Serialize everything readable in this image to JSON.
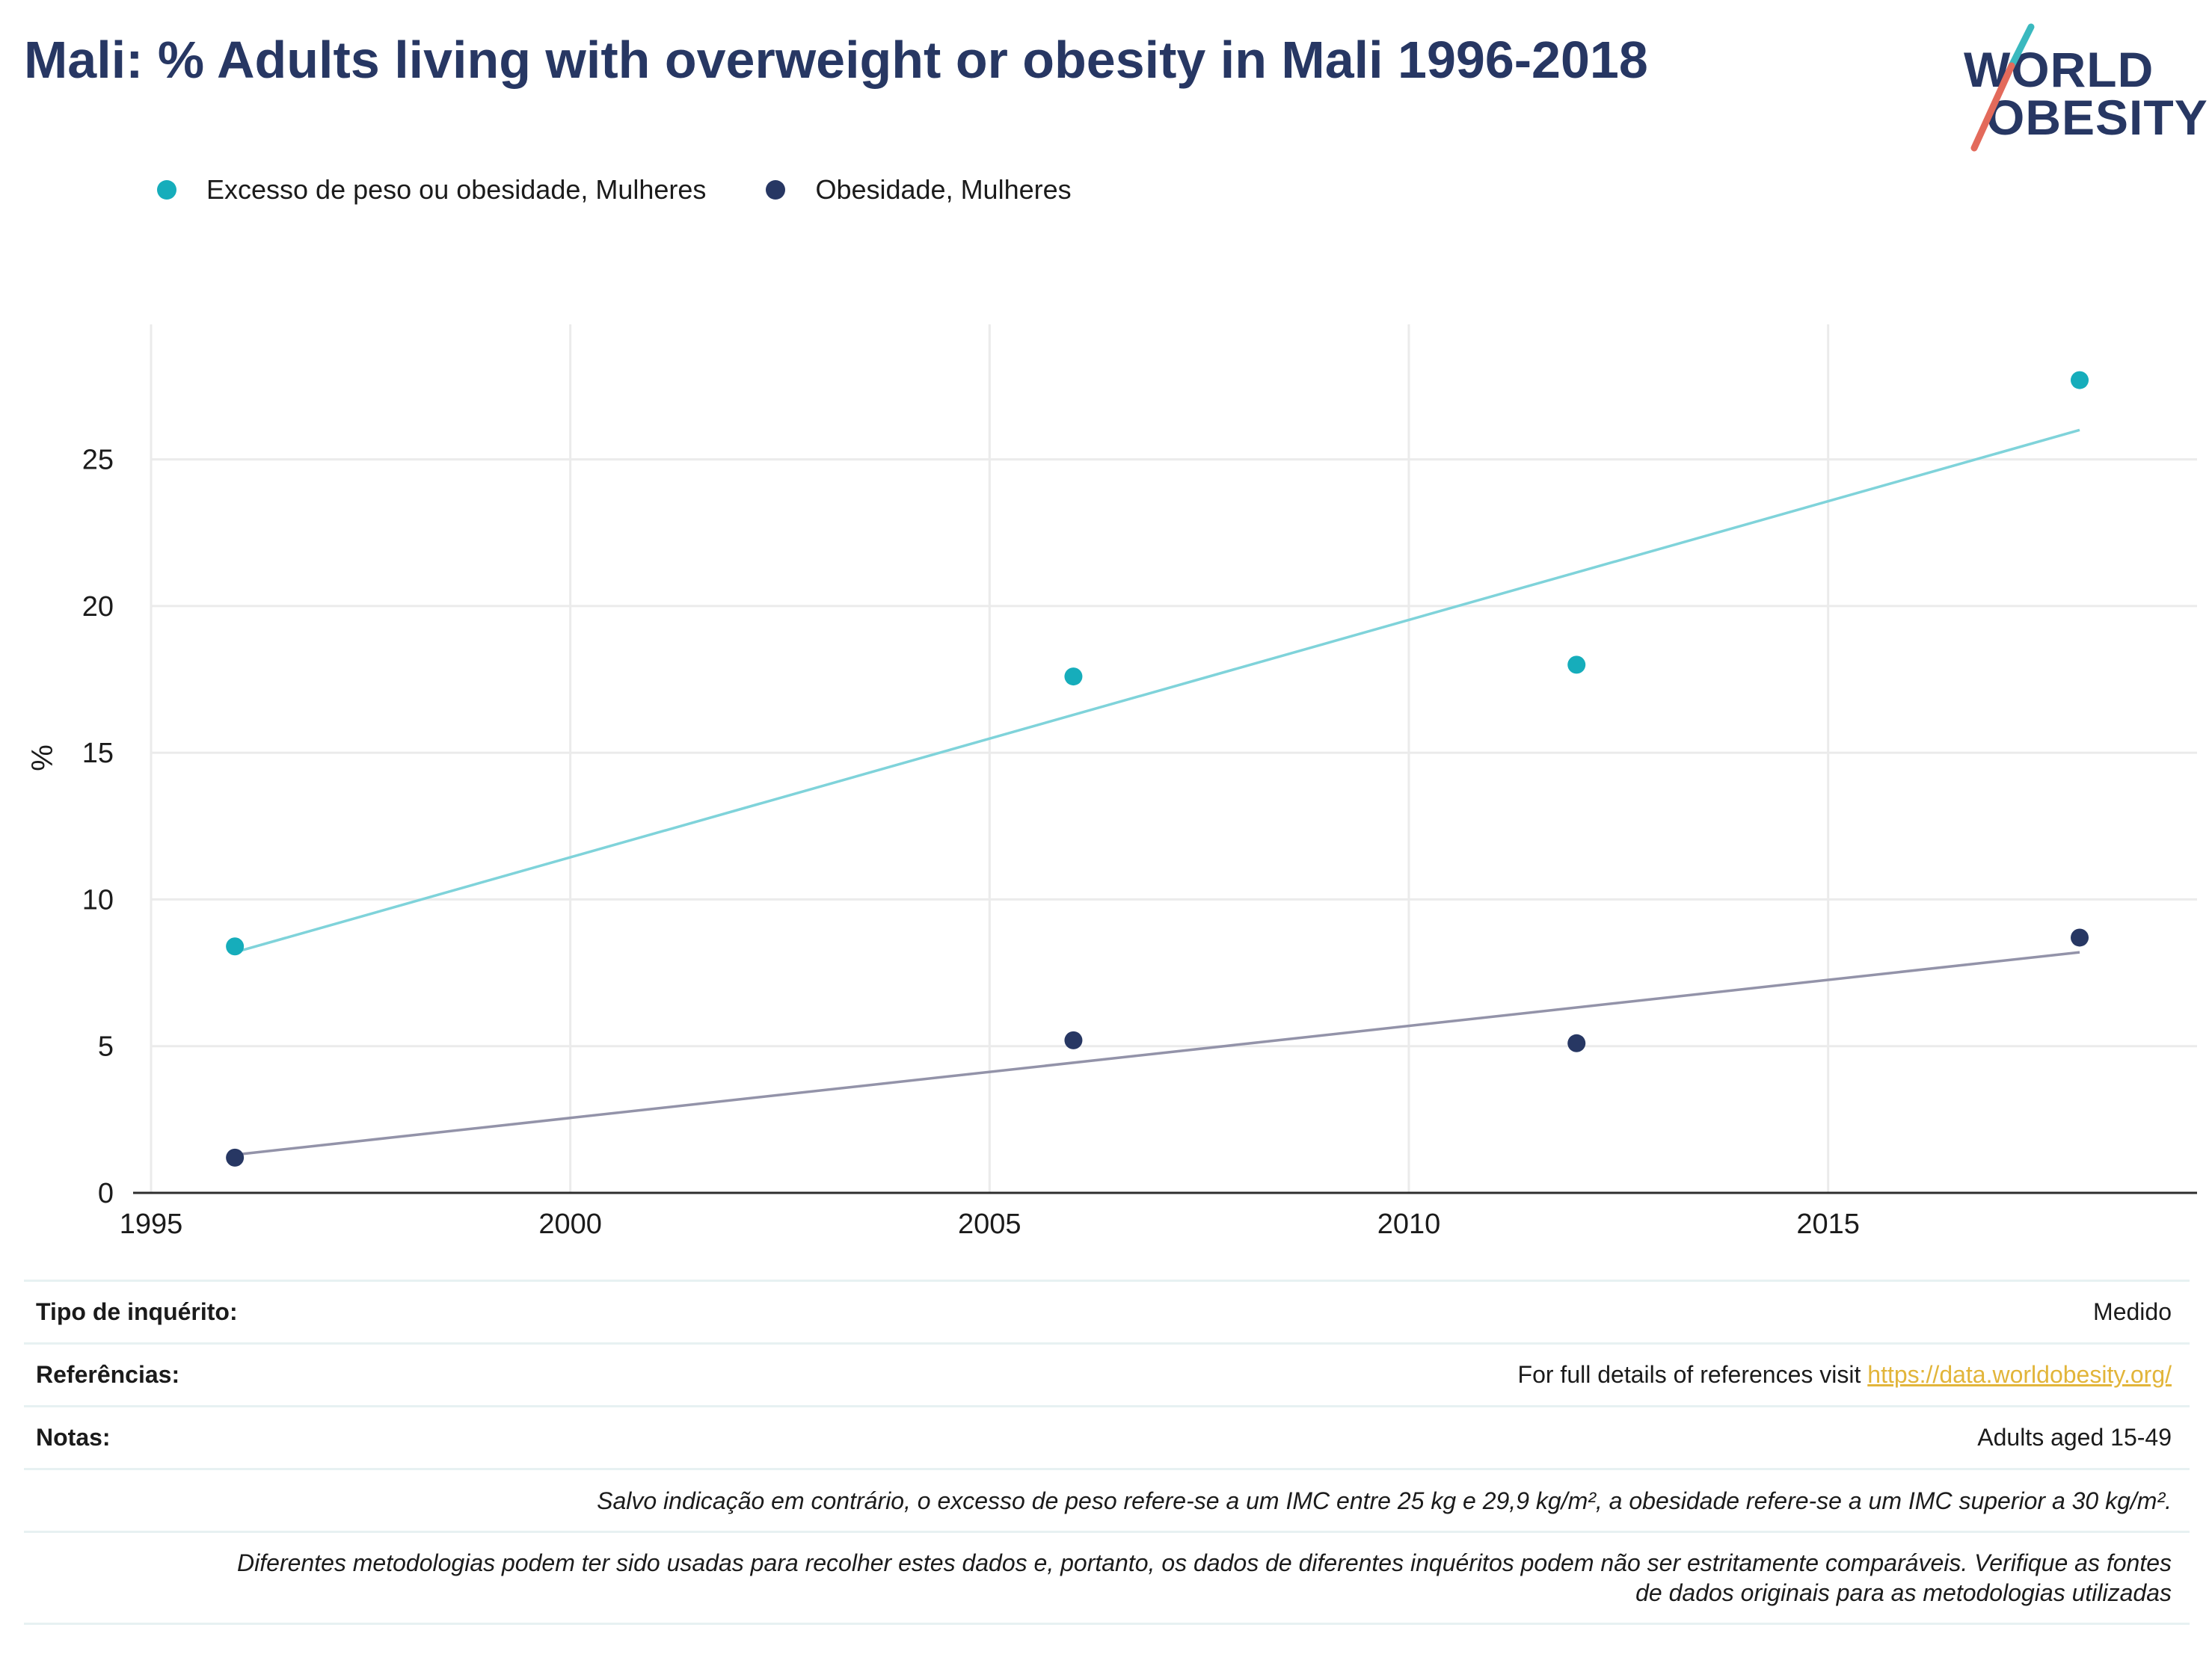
{
  "title": "Mali: % Adults living with overweight or obesity in Mali 1996-2018",
  "logo": {
    "line1": "WORLD",
    "line2": "OBESITY"
  },
  "colors": {
    "overweight_point": "#16adbb",
    "overweight_trend": "#7fd3da",
    "obesity_point": "#273763",
    "obesity_trend": "#9393a9",
    "logo_teal": "#3ab9bf",
    "logo_red": "#e36a5b",
    "link": "#e2b53a"
  },
  "legend": [
    {
      "label": "Excesso de peso ou obesidade, Mulheres",
      "color": "#16adbb"
    },
    {
      "label": "Obesidade, Mulheres",
      "color": "#273763"
    }
  ],
  "chart_data": {
    "type": "scatter",
    "title": "Mali: % Adults living with overweight or obesity in Mali 1996-2018",
    "xlabel": "",
    "ylabel": "%",
    "xlim": [
      1995,
      2019.4
    ],
    "ylim": [
      0,
      29.6
    ],
    "xticks": [
      1995,
      2000,
      2005,
      2010,
      2015
    ],
    "yticks": [
      0,
      5,
      10,
      15,
      20,
      25
    ],
    "grid": true,
    "legend_position": "top-left",
    "series": [
      {
        "name": "Excesso de peso ou obesidade, Mulheres",
        "x": [
          1996,
          2006,
          2012,
          2018
        ],
        "y": [
          8.4,
          17.6,
          18.0,
          27.7
        ],
        "trend": {
          "x": [
            1996,
            2018
          ],
          "y": [
            8.2,
            26.0
          ]
        }
      },
      {
        "name": "Obesidade, Mulheres",
        "x": [
          1996,
          2006,
          2012,
          2018
        ],
        "y": [
          1.2,
          5.2,
          5.1,
          8.7
        ],
        "trend": {
          "x": [
            1996,
            2018
          ],
          "y": [
            1.3,
            8.2
          ]
        }
      }
    ]
  },
  "info": {
    "survey_type_label": "Tipo de inquérito:",
    "survey_type_value": "Medido",
    "references_label": "Referências:",
    "references_text": "For full details of references visit ",
    "references_link": "https://data.worldobesity.org/",
    "notes_label": "Notas:",
    "notes_value": "Adults aged 15-49",
    "note_bmi": "Salvo indicação em contrário, o excesso de peso refere-se a um IMC entre 25 kg e 29,9 kg/m², a obesidade refere-se a um IMC superior a 30 kg/m².",
    "note_methods_1": "Diferentes metodologias podem ter sido usadas para recolher estes dados e, portanto, os dados de diferentes inquéritos podem não ser estritamente comparáveis. Verifique as fontes",
    "note_methods_2": "de dados originais para as metodologias utilizadas"
  }
}
